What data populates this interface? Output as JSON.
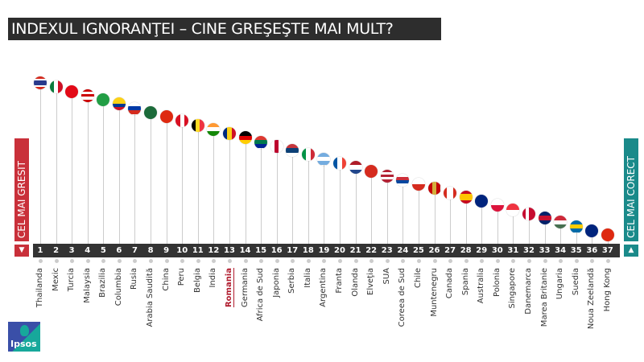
{
  "title": "INDEXUL IGNORANŢEI – CINE GREŞEŞTE MAI MULT?",
  "left_panel": {
    "label": "CEL MAI GRESIT",
    "arrow": "▼",
    "color": "#c9303a"
  },
  "right_panel": {
    "label": "CEL MAI CORECT",
    "arrow": "▲",
    "color": "#1a8a8a"
  },
  "logo": "Ipsos",
  "highlight": "Romania",
  "chart_data": {
    "type": "ranking",
    "title": "INDEXUL IGNORANŢEI – CINE GREŞEŞTE MAI MULT?",
    "items": [
      {
        "rank": 1,
        "country": "Thailanda",
        "flag": {
          "dir": "h",
          "colors": [
            "#d52b1e",
            "#fff",
            "#2a3a8c",
            "#2a3a8c",
            "#fff",
            "#d52b1e"
          ]
        }
      },
      {
        "rank": 2,
        "country": "Mexic",
        "flag": {
          "dir": "v",
          "colors": [
            "#0a7a3c",
            "#fff",
            "#ce1126"
          ]
        }
      },
      {
        "rank": 3,
        "country": "Turcia",
        "flag": {
          "dir": "v",
          "colors": [
            "#e30a17"
          ]
        }
      },
      {
        "rank": 4,
        "country": "Malaysia",
        "flag": {
          "dir": "h",
          "colors": [
            "#cc0001",
            "#fff",
            "#cc0001",
            "#fff",
            "#cc0001"
          ]
        }
      },
      {
        "rank": 5,
        "country": "Brazilia",
        "flag": {
          "dir": "v",
          "colors": [
            "#229e45"
          ]
        }
      },
      {
        "rank": 6,
        "country": "Columbia",
        "flag": {
          "dir": "h",
          "colors": [
            "#fcd116",
            "#fcd116",
            "#003893",
            "#ce1126"
          ]
        }
      },
      {
        "rank": 7,
        "country": "Rusia",
        "flag": {
          "dir": "h",
          "colors": [
            "#fff",
            "#0039a6",
            "#d52b1e"
          ]
        }
      },
      {
        "rank": 8,
        "country": "Arabia Saudită",
        "flag": {
          "dir": "v",
          "colors": [
            "#1c6b3a"
          ]
        }
      },
      {
        "rank": 9,
        "country": "China",
        "flag": {
          "dir": "v",
          "colors": [
            "#de2910"
          ]
        }
      },
      {
        "rank": 10,
        "country": "Peru",
        "flag": {
          "dir": "v",
          "colors": [
            "#d91023",
            "#fff",
            "#d91023"
          ]
        }
      },
      {
        "rank": 11,
        "country": "Belgia",
        "flag": {
          "dir": "v",
          "colors": [
            "#000",
            "#fdda24",
            "#ef3340"
          ]
        }
      },
      {
        "rank": 12,
        "country": "India",
        "flag": {
          "dir": "h",
          "colors": [
            "#ff9933",
            "#fff",
            "#138808"
          ]
        }
      },
      {
        "rank": 13,
        "country": "Romania",
        "flag": {
          "dir": "v",
          "colors": [
            "#002b7f",
            "#fcd116",
            "#ce1126"
          ]
        }
      },
      {
        "rank": 14,
        "country": "Germania",
        "flag": {
          "dir": "h",
          "colors": [
            "#000",
            "#dd0000",
            "#ffce00"
          ]
        }
      },
      {
        "rank": 15,
        "country": "Africa de Sud",
        "flag": {
          "dir": "h",
          "colors": [
            "#de3831",
            "#007a4d",
            "#002395"
          ]
        }
      },
      {
        "rank": 16,
        "country": "Japonia",
        "flag": {
          "dir": "v",
          "colors": [
            "#fff",
            "#bc002d",
            "#fff"
          ]
        }
      },
      {
        "rank": 17,
        "country": "Serbia",
        "flag": {
          "dir": "h",
          "colors": [
            "#c6363c",
            "#0c4076",
            "#fff"
          ]
        }
      },
      {
        "rank": 18,
        "country": "Italia",
        "flag": {
          "dir": "v",
          "colors": [
            "#009246",
            "#fff",
            "#ce2b37"
          ]
        }
      },
      {
        "rank": 19,
        "country": "Argentina",
        "flag": {
          "dir": "h",
          "colors": [
            "#74acdf",
            "#fff",
            "#74acdf"
          ]
        }
      },
      {
        "rank": 20,
        "country": "Franta",
        "flag": {
          "dir": "v",
          "colors": [
            "#0055a4",
            "#fff",
            "#ef4135"
          ]
        }
      },
      {
        "rank": 21,
        "country": "Olanda",
        "flag": {
          "dir": "h",
          "colors": [
            "#ae1c28",
            "#fff",
            "#21468b"
          ]
        }
      },
      {
        "rank": 22,
        "country": "Elveţia",
        "flag": {
          "dir": "v",
          "colors": [
            "#d52b1e"
          ]
        }
      },
      {
        "rank": 23,
        "country": "SUA",
        "flag": {
          "dir": "h",
          "colors": [
            "#b22234",
            "#fff",
            "#b22234",
            "#fff",
            "#b22234"
          ]
        }
      },
      {
        "rank": 24,
        "country": "Coreea de Sud",
        "flag": {
          "dir": "h",
          "colors": [
            "#fff",
            "#cd2e3a",
            "#0047a0",
            "#fff"
          ]
        }
      },
      {
        "rank": 25,
        "country": "Chile",
        "flag": {
          "dir": "h",
          "colors": [
            "#fff",
            "#d52b1e"
          ]
        }
      },
      {
        "rank": 26,
        "country": "Muntenegru",
        "flag": {
          "dir": "v",
          "colors": [
            "#c40308",
            "#d3ae3b",
            "#c40308"
          ]
        }
      },
      {
        "rank": 27,
        "country": "Canada",
        "flag": {
          "dir": "v",
          "colors": [
            "#d52b1e",
            "#fff",
            "#fff",
            "#d52b1e"
          ]
        }
      },
      {
        "rank": 28,
        "country": "Spania",
        "flag": {
          "dir": "h",
          "colors": [
            "#c60b1e",
            "#ffc400",
            "#ffc400",
            "#c60b1e"
          ]
        }
      },
      {
        "rank": 29,
        "country": "Australia",
        "flag": {
          "dir": "v",
          "colors": [
            "#00247d"
          ]
        }
      },
      {
        "rank": 30,
        "country": "Polonia",
        "flag": {
          "dir": "h",
          "colors": [
            "#fff",
            "#dc143c"
          ]
        }
      },
      {
        "rank": 31,
        "country": "Singapore",
        "flag": {
          "dir": "h",
          "colors": [
            "#ef3340",
            "#fff"
          ]
        }
      },
      {
        "rank": 32,
        "country": "Danemarca",
        "flag": {
          "dir": "v",
          "colors": [
            "#c60c30",
            "#fff",
            "#c60c30",
            "#c60c30"
          ]
        }
      },
      {
        "rank": 33,
        "country": "Marea Britanie",
        "flag": {
          "dir": "h",
          "colors": [
            "#012169",
            "#c8102e",
            "#012169"
          ]
        }
      },
      {
        "rank": 34,
        "country": "Ungaria",
        "flag": {
          "dir": "h",
          "colors": [
            "#ce2939",
            "#fff",
            "#477050"
          ]
        }
      },
      {
        "rank": 35,
        "country": "Suedia",
        "flag": {
          "dir": "h",
          "colors": [
            "#006aa7",
            "#fecc00",
            "#006aa7"
          ]
        }
      },
      {
        "rank": 36,
        "country": "Noua Zeelandă",
        "flag": {
          "dir": "v",
          "colors": [
            "#00247d"
          ]
        }
      },
      {
        "rank": 37,
        "country": "Hong Kong",
        "flag": {
          "dir": "v",
          "colors": [
            "#de2910"
          ]
        }
      }
    ]
  }
}
